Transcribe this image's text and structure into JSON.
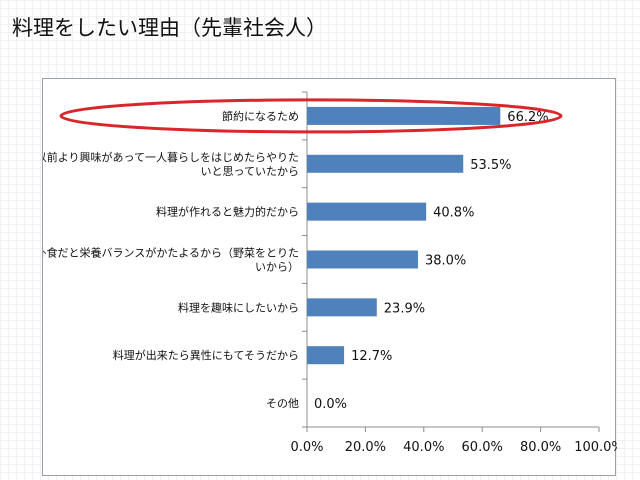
{
  "page": {
    "title": "料理をしたい理由（先輩社会人）"
  },
  "colors": {
    "bar": "#4f81bd",
    "highlight_ellipse": "#d9262b",
    "axis": "#8c8c8c",
    "text": "#111111"
  },
  "chart_data": {
    "type": "bar",
    "orientation": "horizontal",
    "title": "",
    "xlabel": "",
    "ylabel": "",
    "xlim": [
      0,
      100
    ],
    "x_ticks": [
      "0.0%",
      "20.0%",
      "40.0%",
      "60.0%",
      "80.0%",
      "100.0%"
    ],
    "grid": false,
    "legend": "none",
    "highlighted_category_index": 0,
    "categories": [
      [
        "節約になるため"
      ],
      [
        "以前より興味があって一人暮らしをはじめたらやりた",
        "いと思っていたから"
      ],
      [
        "料理が作れると魅力的だから"
      ],
      [
        "外食だと栄養バランスがかたよるから（野菜をとりた",
        "いから）"
      ],
      [
        "料理を趣味にしたいから"
      ],
      [
        "料理が出来たら異性にもてそうだから"
      ],
      [
        "その他"
      ]
    ],
    "values": [
      66.2,
      53.5,
      40.8,
      38.0,
      23.9,
      12.7,
      0.0
    ],
    "value_labels": [
      "66.2%",
      "53.5%",
      "40.8%",
      "38.0%",
      "23.9%",
      "12.7%",
      "0.0%"
    ]
  }
}
